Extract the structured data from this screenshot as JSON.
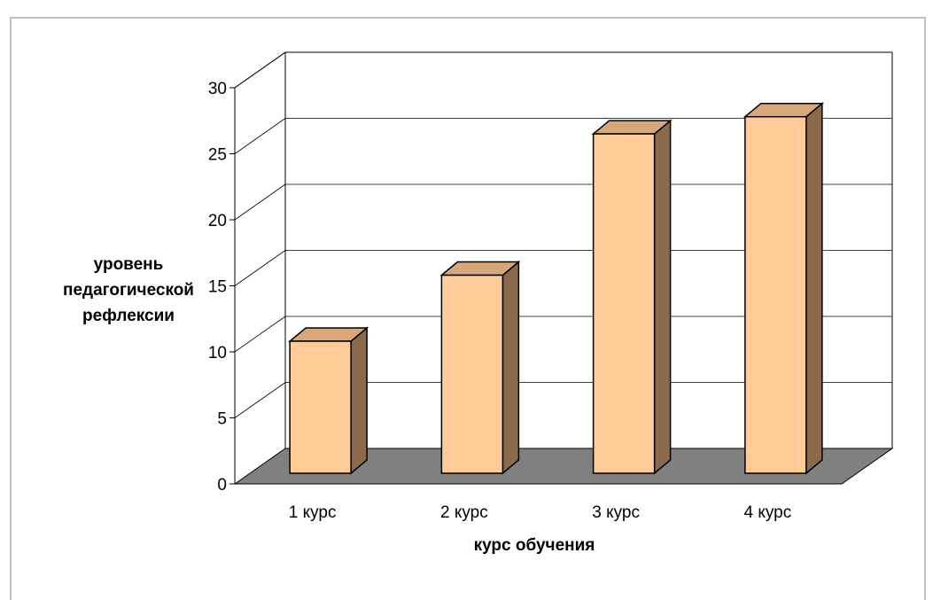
{
  "chart_data": {
    "type": "bar",
    "style": "3d-column",
    "title": "",
    "xlabel": "курс обучения",
    "ylabel_lines": [
      "уровень",
      "педагогической",
      "рефлексии"
    ],
    "categories": [
      "1 курс",
      "2 курс",
      "3 курс",
      "4 курс"
    ],
    "values": [
      10,
      15,
      25.7,
      27
    ],
    "ylim": [
      0,
      30
    ],
    "yticks": [
      "0",
      "5",
      "10",
      "15",
      "20",
      "25",
      "30"
    ],
    "grid": true,
    "legend": "none",
    "colors": {
      "bar_front": "#ffcc99",
      "bar_top": "#d8a87a",
      "bar_side": "#8b6a4c",
      "floor": "#808080",
      "frame_border": "#c0c0c0"
    }
  }
}
